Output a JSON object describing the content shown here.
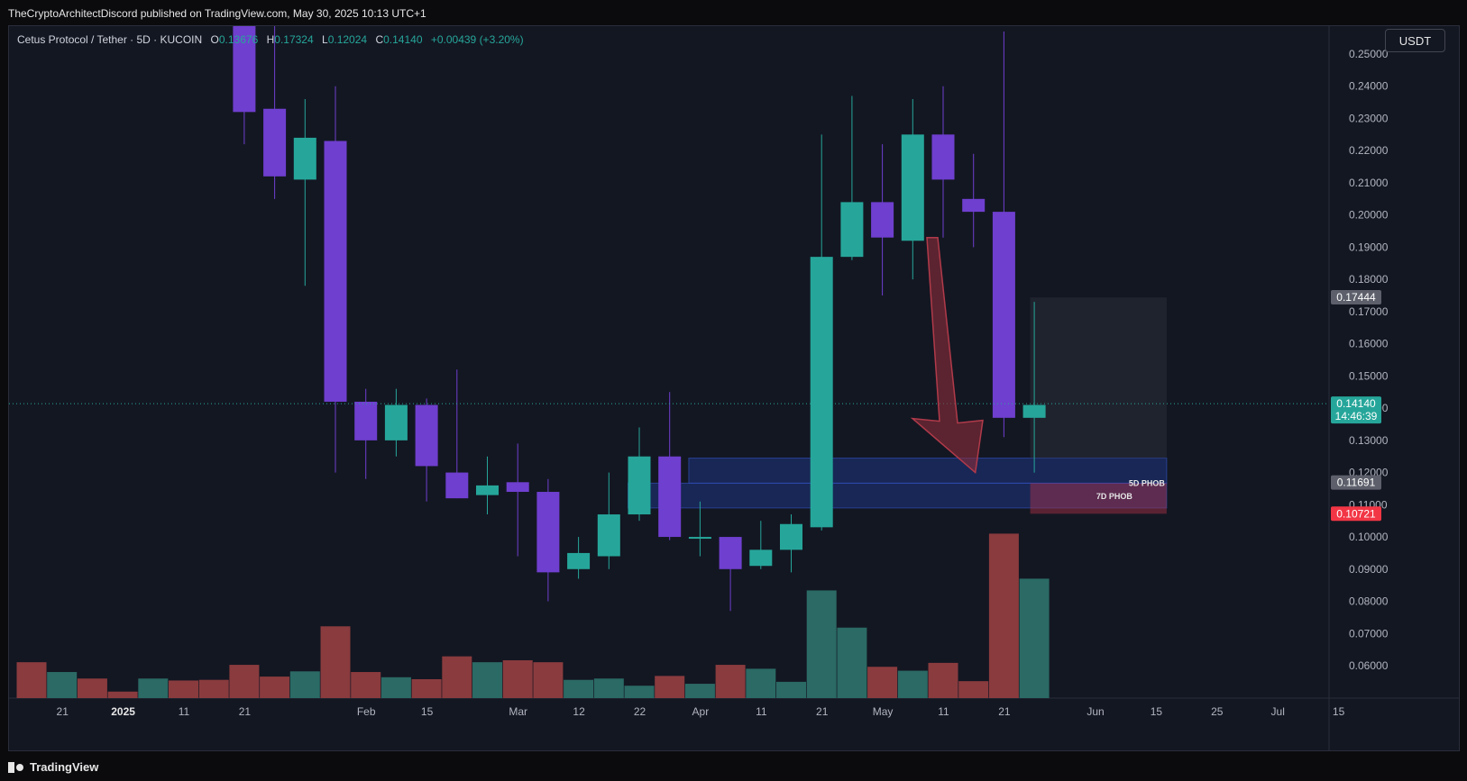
{
  "publisher_line": "TheCryptoArchitectDiscord published on TradingView.com, May 30, 2025 10:13 UTC+1",
  "currency_button": "USDT",
  "brand_name": "TradingView",
  "ohlc": {
    "symbol": "Cetus Protocol / Tether · 5D · KUCOIN",
    "open_label": "O",
    "open_value": "0.13676",
    "high_label": "H",
    "high_value": "0.17324",
    "low_label": "L",
    "low_value": "0.12024",
    "close_label": "C",
    "close_value": "0.14140",
    "change_value": "+0.00439 (+3.20%)"
  },
  "colors": {
    "up": "#26a69a",
    "down": "#6f3fcf",
    "vol_up": "#2b6a65",
    "vol_down": "#8a3b3e",
    "background": "#131722",
    "grid": "#1c2030",
    "last_price": "#26a69a",
    "zone_blue": "#1f3fa0",
    "zone_red": "#b2334a",
    "arrow": "#8c2d3a"
  },
  "chart_data": {
    "type": "candlestick",
    "title": "Cetus Protocol / Tether · 5D · KUCOIN",
    "ylim": [
      0.051,
      0.262
    ],
    "grid": false,
    "y_ticks": [
      "0.25000",
      "0.24000",
      "0.23000",
      "0.22000",
      "0.21000",
      "0.20000",
      "0.19000",
      "0.18000",
      "0.17000",
      "0.16000",
      "0.15000",
      "0.14000",
      "0.13000",
      "0.12000",
      "0.11000",
      "0.10000",
      "0.09000",
      "0.08000",
      "0.07000",
      "0.06000"
    ],
    "x_ticks": [
      {
        "label": "21",
        "bar": 1
      },
      {
        "label": "2025",
        "bar": 3
      },
      {
        "label": "11",
        "bar": 5
      },
      {
        "label": "21",
        "bar": 7
      },
      {
        "label": "Feb",
        "bar": 11
      },
      {
        "label": "15",
        "bar": 13
      },
      {
        "label": "Mar",
        "bar": 16
      },
      {
        "label": "12",
        "bar": 18
      },
      {
        "label": "22",
        "bar": 20
      },
      {
        "label": "Apr",
        "bar": 22
      },
      {
        "label": "11",
        "bar": 24
      },
      {
        "label": "21",
        "bar": 26
      },
      {
        "label": "May",
        "bar": 28
      },
      {
        "label": "11",
        "bar": 30
      },
      {
        "label": "21",
        "bar": 32
      },
      {
        "label": "Jun",
        "bar": 35
      },
      {
        "label": "15",
        "bar": 37
      },
      {
        "label": "25",
        "bar": 39
      },
      {
        "label": "Jul",
        "bar": 41
      },
      {
        "label": "15",
        "bar": 43
      }
    ],
    "candles": [
      {
        "o": null,
        "h": null,
        "l": null,
        "c": null,
        "v": 0.055
      },
      {
        "o": null,
        "h": null,
        "l": null,
        "c": null,
        "v": 0.04
      },
      {
        "o": null,
        "h": null,
        "l": null,
        "c": null,
        "v": 0.03
      },
      {
        "o": null,
        "h": null,
        "l": null,
        "c": null,
        "v": 0.01
      },
      {
        "o": null,
        "h": null,
        "l": null,
        "c": null,
        "v": 0.03
      },
      {
        "o": null,
        "h": null,
        "l": null,
        "c": null,
        "v": 0.027
      },
      {
        "o": null,
        "h": null,
        "l": null,
        "c": null,
        "v": 0.028
      },
      {
        "o": 0.262,
        "h": 0.262,
        "l": 0.222,
        "c": 0.232,
        "v": 0.051
      },
      {
        "o": 0.233,
        "h": 0.262,
        "l": 0.205,
        "c": 0.212,
        "v": 0.033
      },
      {
        "o": 0.211,
        "h": 0.236,
        "l": 0.178,
        "c": 0.224,
        "v": 0.041
      },
      {
        "o": 0.223,
        "h": 0.24,
        "l": 0.12,
        "c": 0.142,
        "v": 0.11
      },
      {
        "o": 0.142,
        "h": 0.146,
        "l": 0.118,
        "c": 0.13,
        "v": 0.04
      },
      {
        "o": 0.13,
        "h": 0.146,
        "l": 0.125,
        "c": 0.141,
        "v": 0.032
      },
      {
        "o": 0.141,
        "h": 0.143,
        "l": 0.111,
        "c": 0.122,
        "v": 0.029
      },
      {
        "o": 0.12,
        "h": 0.152,
        "l": 0.112,
        "c": 0.112,
        "v": 0.064
      },
      {
        "o": 0.113,
        "h": 0.125,
        "l": 0.107,
        "c": 0.116,
        "v": 0.055
      },
      {
        "o": 0.117,
        "h": 0.129,
        "l": 0.094,
        "c": 0.114,
        "v": 0.058
      },
      {
        "o": 0.114,
        "h": 0.118,
        "l": 0.08,
        "c": 0.089,
        "v": 0.055
      },
      {
        "o": 0.09,
        "h": 0.1,
        "l": 0.087,
        "c": 0.095,
        "v": 0.028
      },
      {
        "o": 0.094,
        "h": 0.12,
        "l": 0.09,
        "c": 0.107,
        "v": 0.03
      },
      {
        "o": 0.107,
        "h": 0.134,
        "l": 0.105,
        "c": 0.125,
        "v": 0.019
      },
      {
        "o": 0.125,
        "h": 0.145,
        "l": 0.099,
        "c": 0.1,
        "v": 0.034
      },
      {
        "o": 0.1,
        "h": 0.111,
        "l": 0.094,
        "c": 0.1,
        "v": 0.022
      },
      {
        "o": 0.1,
        "h": 0.1,
        "l": 0.077,
        "c": 0.09,
        "v": 0.051
      },
      {
        "o": 0.091,
        "h": 0.105,
        "l": 0.09,
        "c": 0.096,
        "v": 0.045
      },
      {
        "o": 0.096,
        "h": 0.107,
        "l": 0.089,
        "c": 0.104,
        "v": 0.025
      },
      {
        "o": 0.103,
        "h": 0.225,
        "l": 0.102,
        "c": 0.187,
        "v": 0.165
      },
      {
        "o": 0.187,
        "h": 0.237,
        "l": 0.186,
        "c": 0.204,
        "v": 0.108
      },
      {
        "o": 0.204,
        "h": 0.222,
        "l": 0.175,
        "c": 0.193,
        "v": 0.048
      },
      {
        "o": 0.192,
        "h": 0.236,
        "l": 0.18,
        "c": 0.225,
        "v": 0.042
      },
      {
        "o": 0.225,
        "h": 0.24,
        "l": 0.193,
        "c": 0.211,
        "v": 0.054
      },
      {
        "o": 0.205,
        "h": 0.219,
        "l": 0.19,
        "c": 0.201,
        "v": 0.026
      },
      {
        "o": 0.201,
        "h": 0.257,
        "l": 0.131,
        "c": 0.137,
        "v": 0.252
      },
      {
        "o": 0.137,
        "h": 0.173,
        "l": 0.12,
        "c": 0.141,
        "v": 0.183
      }
    ],
    "volume_max": 0.276,
    "last_price": {
      "value": 0.1414,
      "label": "0.14140",
      "countdown": "14:46:39"
    },
    "price_labels": [
      {
        "value": 0.17444,
        "label": "0.17444",
        "color": "#5d606b"
      },
      {
        "value": 0.11691,
        "label": "0.11691",
        "color": "#5d606b"
      },
      {
        "value": 0.10721,
        "label": "0.10721",
        "color": "#f23645"
      }
    ],
    "zones": [
      {
        "label": "5D PHOB",
        "top": 0.1245,
        "bottom": 0.1167,
        "from_bar": 22,
        "to_bar": 37
      },
      {
        "label": "7D PHOB",
        "top": 0.1167,
        "bottom": 0.109,
        "from_bar": 20,
        "to_bar": 37
      }
    ],
    "projection_box": {
      "top": 0.1744,
      "bottom": 0.1072,
      "from_bar": 33,
      "to_bar": 37
    },
    "arrow": {
      "from_bar": 30,
      "from_price": 0.193,
      "to_bar": 31,
      "to_price": 0.12
    }
  }
}
